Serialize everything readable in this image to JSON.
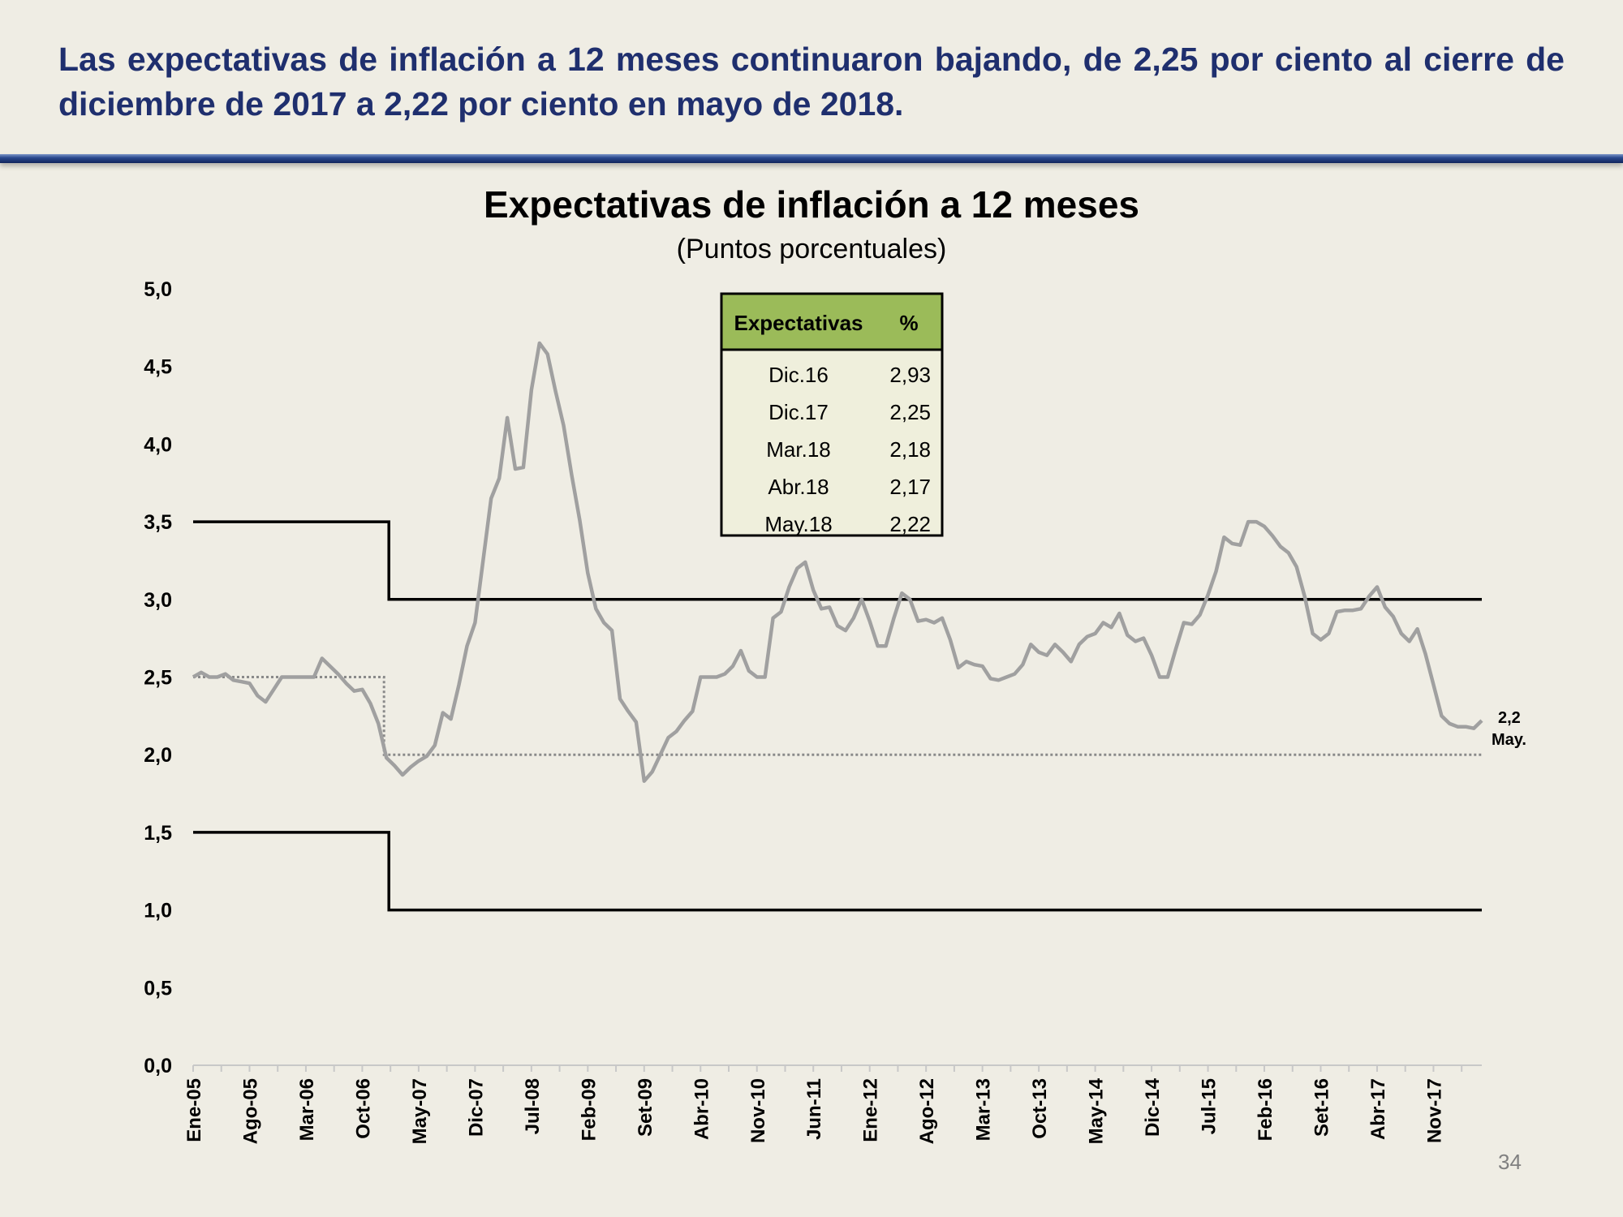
{
  "slide": {
    "headline": "Las expectativas de inflación a 12 meses continuaron bajando, de 2,25 por ciento al cierre de diciembre de 2017 a 2,22 por ciento en mayo de 2018.",
    "page_number": "34"
  },
  "colors": {
    "title_text": "#1f2f6e",
    "series_line": "#a0a0a0",
    "range_line": "#000000",
    "target_line": "#8a8a8a",
    "table_header_bg": "#9bbb59",
    "table_body_bg": "#efefdc"
  },
  "table": {
    "headers": [
      "Expectativas",
      "%"
    ],
    "rows": [
      [
        "Dic.16",
        "2,93"
      ],
      [
        "Dic.17",
        "2,25"
      ],
      [
        "Mar.18",
        "2,18"
      ],
      [
        "Abr.18",
        "2,17"
      ],
      [
        "May.18",
        "2,22"
      ]
    ]
  },
  "chart_data": {
    "type": "line",
    "title": "Expectativas de inflación a 12 meses",
    "subtitle": "(Puntos porcentuales)",
    "ylim": [
      0,
      5
    ],
    "yticks": [
      "0,0",
      "0,5",
      "1,0",
      "1,5",
      "2,0",
      "2,5",
      "3,0",
      "3,5",
      "4,0",
      "4,5",
      "5,0"
    ],
    "x_start": "Ene-05",
    "x_end": "May-18",
    "xtick_labels": [
      "Ene-05",
      "Ago-05",
      "Mar-06",
      "Oct-06",
      "May-07",
      "Dic-07",
      "Jul-08",
      "Feb-09",
      "Set-09",
      "Abr-10",
      "Nov-10",
      "Jun-11",
      "Ene-12",
      "Ago-12",
      "Mar-13",
      "Oct-13",
      "May-14",
      "Dic-14",
      "Jul-15",
      "Feb-16",
      "Set-16",
      "Abr-17",
      "Nov-17"
    ],
    "end_annotation": {
      "value": "2,2",
      "label": "May."
    },
    "grid": false,
    "series": [
      {
        "values": [
          2.5,
          2.53,
          2.5,
          2.5,
          2.52,
          2.48,
          2.47,
          2.46,
          2.38,
          2.34,
          2.42,
          2.5,
          2.5,
          2.5,
          2.5,
          2.5,
          2.62,
          2.57,
          2.52,
          2.46,
          2.41,
          2.42,
          2.33,
          2.2,
          1.98,
          1.93,
          1.87,
          1.92,
          1.96,
          1.99,
          2.06,
          2.27,
          2.23,
          2.45,
          2.7,
          2.85,
          3.25,
          3.65,
          3.78,
          4.17,
          3.84,
          3.85,
          4.35,
          4.65,
          4.58,
          4.34,
          4.12,
          3.8,
          3.51,
          3.17,
          2.94,
          2.85,
          2.8,
          2.36,
          2.28,
          2.21,
          1.83,
          1.89,
          2.0,
          2.11,
          2.15,
          2.22,
          2.28,
          2.5,
          2.5,
          2.5,
          2.52,
          2.57,
          2.67,
          2.54,
          2.5,
          2.5,
          2.88,
          2.92,
          3.08,
          3.2,
          3.24,
          3.06,
          2.94,
          2.95,
          2.83,
          2.8,
          2.88,
          3.0,
          2.86,
          2.7,
          2.7,
          2.88,
          3.04,
          3.0,
          2.86,
          2.87,
          2.85,
          2.88,
          2.74,
          2.56,
          2.6,
          2.58,
          2.57,
          2.49,
          2.48,
          2.5,
          2.52,
          2.58,
          2.71,
          2.66,
          2.64,
          2.71,
          2.66,
          2.6,
          2.71,
          2.76,
          2.78,
          2.85,
          2.82,
          2.91,
          2.77,
          2.73,
          2.75,
          2.64,
          2.5,
          2.5,
          2.68,
          2.85,
          2.84,
          2.9,
          3.03,
          3.18,
          3.4,
          3.36,
          3.35,
          3.5,
          3.5,
          3.47,
          3.41,
          3.34,
          3.3,
          3.21,
          3.02,
          2.78,
          2.74,
          2.78,
          2.92,
          2.93,
          2.93,
          2.94,
          3.02,
          3.08,
          2.95,
          2.89,
          2.78,
          2.73,
          2.81,
          2.65,
          2.45,
          2.25,
          2.2,
          2.18,
          2.18,
          2.17,
          2.22
        ]
      }
    ],
    "reference_lines": {
      "upper_range": [
        {
          "from": "Ene-05",
          "to": "Ene-07",
          "value": 3.5
        },
        {
          "from": "Ene-07",
          "to": "May-18",
          "value": 3.0
        }
      ],
      "lower_range": [
        {
          "from": "Ene-05",
          "to": "Ene-07",
          "value": 1.5
        },
        {
          "from": "Ene-07",
          "to": "May-18",
          "value": 1.0
        }
      ],
      "target": [
        {
          "from": "Ene-05",
          "to": "Ene-07",
          "value": 2.5
        },
        {
          "from": "Ene-07",
          "to": "May-18",
          "value": 2.0
        }
      ]
    }
  }
}
